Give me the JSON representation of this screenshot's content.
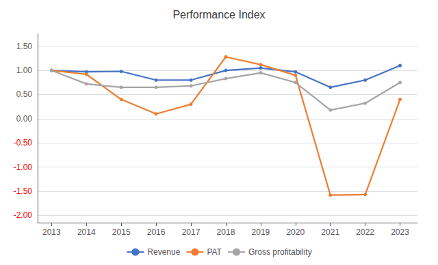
{
  "chart_data": {
    "type": "line",
    "title": "Performance Index",
    "x": [
      2013,
      2014,
      2015,
      2016,
      2017,
      2018,
      2019,
      2020,
      2021,
      2022,
      2023
    ],
    "xlim": [
      2012.6,
      2023.5
    ],
    "xticks": [
      2013,
      2014,
      2015,
      2016,
      2017,
      2018,
      2019,
      2020,
      2021,
      2022,
      2023
    ],
    "series": [
      {
        "name": "Revenue",
        "color": "#4472C4",
        "values": [
          1.0,
          0.97,
          0.98,
          0.8,
          0.8,
          1.0,
          1.05,
          0.97,
          0.65,
          0.8,
          1.1
        ]
      },
      {
        "name": "PAT",
        "color": "#ED7D31",
        "values": [
          1.0,
          0.92,
          0.4,
          0.1,
          0.3,
          1.28,
          1.12,
          0.9,
          -1.58,
          -1.57,
          0.4
        ]
      },
      {
        "name": "Gross profitability",
        "color": "#A5A5A5",
        "values": [
          1.0,
          0.72,
          0.65,
          0.65,
          0.68,
          0.83,
          0.95,
          0.75,
          0.18,
          0.32,
          0.75
        ]
      }
    ],
    "ylim": [
      -2.15,
      1.75
    ],
    "yticks": [
      {
        "value": -2.0,
        "label": "-2.00"
      },
      {
        "value": -1.5,
        "label": "-1.50"
      },
      {
        "value": -1.0,
        "label": "-1.00"
      },
      {
        "value": -0.5,
        "label": "-0.50"
      },
      {
        "value": 0.0,
        "label": "0.00"
      },
      {
        "value": 0.5,
        "label": "0.50"
      },
      {
        "value": 1.0,
        "label": "1.00"
      },
      {
        "value": 1.5,
        "label": "1.50"
      }
    ],
    "grid": true,
    "legend": "bottom",
    "marker": "circle"
  }
}
